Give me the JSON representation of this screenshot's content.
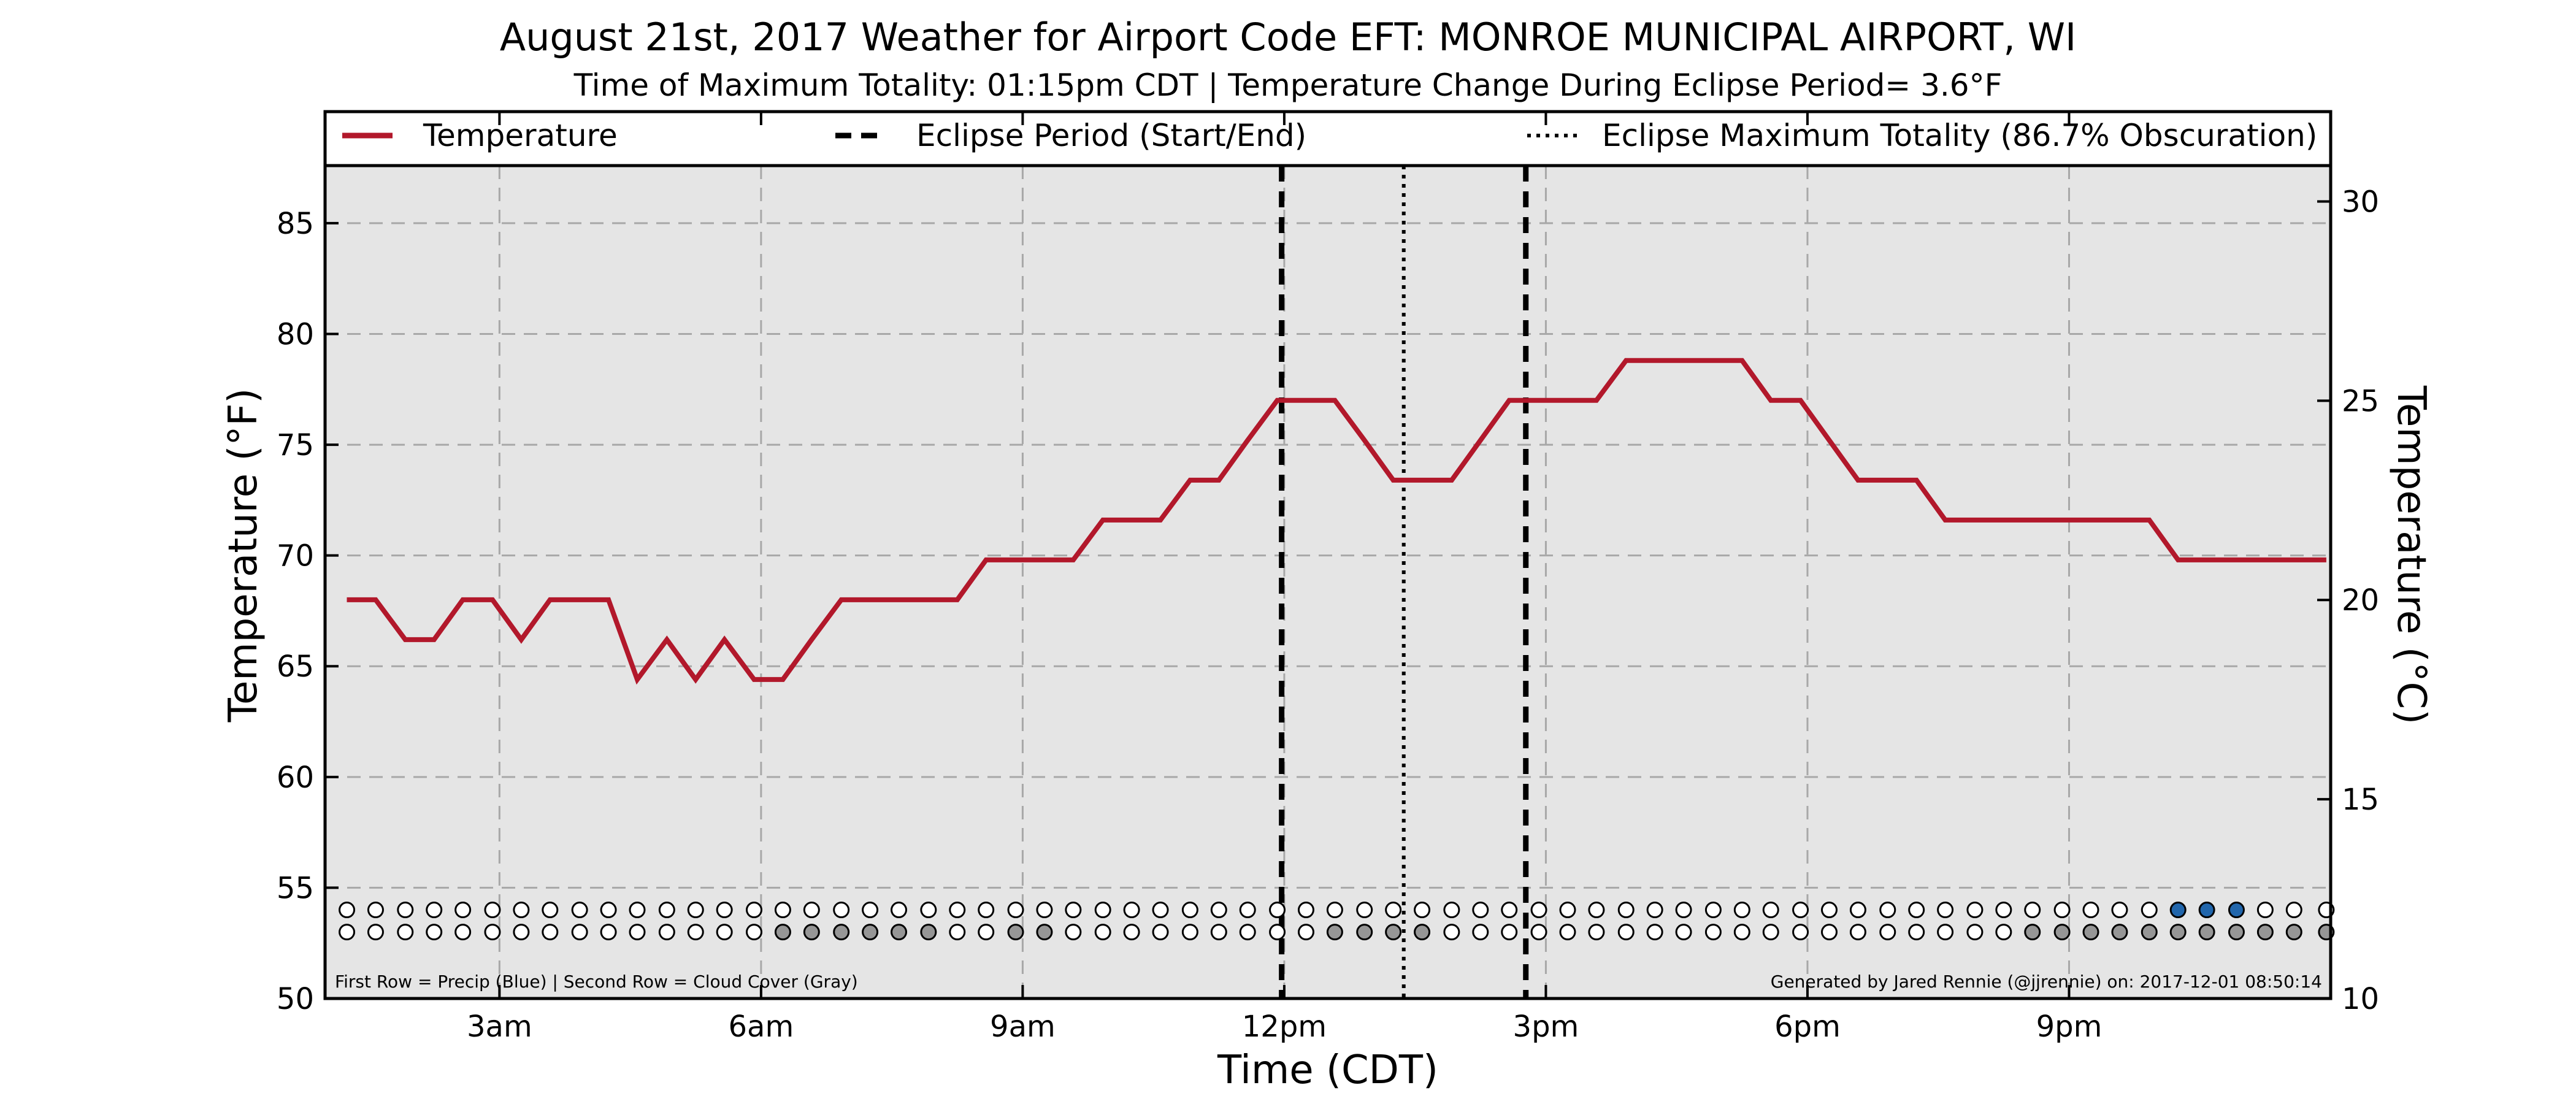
{
  "chart_data": {
    "type": "line",
    "title": "August 21st, 2017 Weather for Airport Code EFT: MONROE MUNICIPAL AIRPORT, WI",
    "subtitle": "Time of Maximum Totality: 01:15pm CDT | Temperature Change During Eclipse Period= 3.6°F",
    "xlabel": "Time (CDT)",
    "ylabel": "Temperature (°F)",
    "ylabel_right": "Temperature (°C)",
    "xlim": [
      1.0,
      24.0
    ],
    "ylim": [
      50,
      87.6
    ],
    "ylim_right": [
      10,
      30.9
    ],
    "x_ticks": [
      {
        "x": 3,
        "label": "3am"
      },
      {
        "x": 6,
        "label": "6am"
      },
      {
        "x": 9,
        "label": "9am"
      },
      {
        "x": 12,
        "label": "12pm"
      },
      {
        "x": 15,
        "label": "3pm"
      },
      {
        "x": 18,
        "label": "6pm"
      },
      {
        "x": 21,
        "label": "9pm"
      }
    ],
    "y_ticks": [
      50,
      55,
      60,
      65,
      70,
      75,
      80,
      85
    ],
    "y_ticks_right": [
      10,
      15,
      20,
      25,
      30
    ],
    "grid": true,
    "legend_position": "top",
    "legend": [
      {
        "label": "Temperature",
        "style": "solid",
        "color": "#b2182b"
      },
      {
        "label": "Eclipse Period (Start/End)",
        "style": "dashed",
        "color": "#000000"
      },
      {
        "label": "Eclipse Maximum Totality (86.7% Obscuration)",
        "style": "dotted",
        "color": "#000000"
      }
    ],
    "series": [
      {
        "name": "Temperature",
        "color": "#b2182b",
        "x": [
          1.25,
          1.58,
          1.92,
          2.25,
          2.58,
          2.92,
          3.25,
          3.58,
          3.92,
          4.25,
          4.58,
          4.92,
          5.25,
          5.58,
          5.92,
          6.25,
          6.58,
          6.92,
          7.25,
          7.58,
          7.92,
          8.25,
          8.58,
          8.92,
          9.25,
          9.58,
          9.92,
          10.25,
          10.58,
          10.92,
          11.25,
          11.58,
          11.92,
          12.25,
          12.58,
          12.92,
          13.25,
          13.58,
          13.92,
          14.25,
          14.58,
          14.92,
          15.25,
          15.58,
          15.92,
          16.25,
          16.58,
          16.92,
          17.25,
          17.58,
          17.92,
          18.25,
          18.58,
          18.92,
          19.25,
          19.58,
          19.92,
          20.25,
          20.58,
          20.92,
          21.25,
          21.58,
          21.92,
          22.25,
          22.58,
          22.92,
          23.25,
          23.58,
          23.95
        ],
        "values": [
          68.0,
          68.0,
          66.2,
          66.2,
          68.0,
          68.0,
          66.2,
          68.0,
          68.0,
          68.0,
          64.4,
          66.2,
          64.4,
          66.2,
          64.4,
          64.4,
          66.2,
          68.0,
          68.0,
          68.0,
          68.0,
          68.0,
          69.8,
          69.8,
          69.8,
          69.8,
          71.6,
          71.6,
          71.6,
          73.4,
          73.4,
          75.2,
          77.0,
          77.0,
          77.0,
          75.2,
          73.4,
          73.4,
          73.4,
          75.2,
          77.0,
          77.0,
          77.0,
          77.0,
          78.8,
          78.8,
          78.8,
          78.8,
          78.8,
          77.0,
          77.0,
          75.2,
          73.4,
          73.4,
          73.4,
          71.6,
          71.6,
          71.6,
          71.6,
          71.6,
          71.6,
          71.6,
          71.6,
          69.8,
          69.8,
          69.8,
          69.8,
          69.8,
          69.8
        ]
      }
    ],
    "vertical_lines": [
      {
        "name": "Eclipse Start",
        "x": 11.97,
        "style": "dashed"
      },
      {
        "name": "Eclipse Maximum Totality",
        "x": 13.37,
        "style": "dotted"
      },
      {
        "name": "Eclipse End",
        "x": 14.77,
        "style": "dashed"
      }
    ],
    "dot_rows": {
      "x": [
        1.25,
        1.58,
        1.92,
        2.25,
        2.58,
        2.92,
        3.25,
        3.58,
        3.92,
        4.25,
        4.58,
        4.92,
        5.25,
        5.58,
        5.92,
        6.25,
        6.58,
        6.92,
        7.25,
        7.58,
        7.92,
        8.25,
        8.58,
        8.92,
        9.25,
        9.58,
        9.92,
        10.25,
        10.58,
        10.92,
        11.25,
        11.58,
        11.92,
        12.25,
        12.58,
        12.92,
        13.25,
        13.58,
        13.92,
        14.25,
        14.58,
        14.92,
        15.25,
        15.58,
        15.92,
        16.25,
        16.58,
        16.92,
        17.25,
        17.58,
        17.92,
        18.25,
        18.58,
        18.92,
        19.25,
        19.58,
        19.92,
        20.25,
        20.58,
        20.92,
        21.25,
        21.58,
        21.92,
        22.25,
        22.58,
        22.92,
        23.25,
        23.58,
        23.95
      ],
      "precip_y": 54.0,
      "cloud_y": 53.0,
      "precip": [
        0,
        0,
        0,
        0,
        0,
        0,
        0,
        0,
        0,
        0,
        0,
        0,
        0,
        0,
        0,
        0,
        0,
        0,
        0,
        0,
        0,
        0,
        0,
        0,
        0,
        0,
        0,
        0,
        0,
        0,
        0,
        0,
        0,
        0,
        0,
        0,
        0,
        0,
        0,
        0,
        0,
        0,
        0,
        0,
        0,
        0,
        0,
        0,
        0,
        0,
        0,
        0,
        0,
        0,
        0,
        0,
        0,
        0,
        0,
        0,
        0,
        0,
        0,
        1,
        1,
        1,
        0,
        0,
        0
      ],
      "cloud": [
        0,
        0,
        0,
        0,
        0,
        0,
        0,
        0,
        0,
        0,
        0,
        0,
        0,
        0,
        0,
        1,
        1,
        1,
        1,
        1,
        1,
        0,
        0,
        1,
        1,
        0,
        0,
        0,
        0,
        0,
        0,
        0,
        0,
        0,
        1,
        1,
        1,
        1,
        0,
        0,
        0,
        0,
        0,
        0,
        0,
        0,
        0,
        0,
        0,
        0,
        0,
        0,
        0,
        0,
        0,
        0,
        0,
        0,
        1,
        1,
        1,
        1,
        1,
        1,
        1,
        1,
        1,
        1,
        1
      ],
      "colors": {
        "empty": "#ffffff",
        "precip": "#2166ac",
        "cloud": "#969696"
      }
    },
    "footnote_left": "First Row = Precip (Blue) | Second Row = Cloud Cover (Gray)",
    "footnote_right": "Generated by Jared Rennie (@jjrennie) on: 2017-12-01 08:50:14"
  }
}
